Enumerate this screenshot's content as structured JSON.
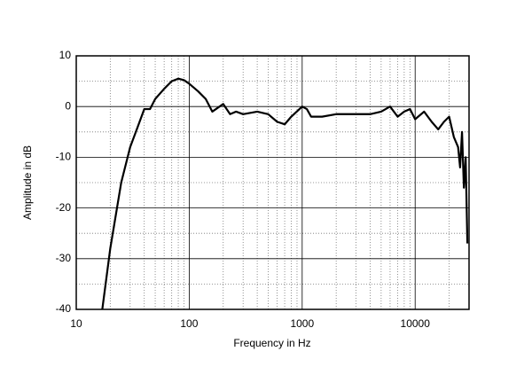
{
  "chart_data": {
    "type": "line",
    "xlabel": "Frequency in Hz",
    "ylabel": "Amplitude in dB",
    "xscale": "log",
    "grid": true,
    "xlim": [
      10,
      30000
    ],
    "xticks": [
      10,
      100,
      1000,
      10000
    ],
    "ylim": [
      -40,
      10
    ],
    "yticks": [
      10,
      0,
      -10,
      -20,
      -30,
      -40
    ],
    "series": [
      {
        "name": "Amplitude",
        "color": "#000000",
        "x": [
          17,
          20,
          25,
          30,
          35,
          40,
          45,
          50,
          60,
          70,
          80,
          90,
          100,
          120,
          140,
          160,
          200,
          230,
          260,
          300,
          400,
          500,
          600,
          700,
          800,
          1000,
          1100,
          1200,
          1500,
          2000,
          3000,
          4000,
          5000,
          6000,
          7000,
          8000,
          9000,
          10000,
          12000,
          14000,
          16000,
          18000,
          20000,
          22000,
          24000,
          25000,
          26000,
          27000,
          28000,
          29000
        ],
        "values": [
          -40,
          -28,
          -15,
          -8,
          -4,
          -0.5,
          -0.5,
          1.5,
          3.5,
          5,
          5.5,
          5.2,
          4.5,
          3,
          1.5,
          -1,
          0.5,
          -1.5,
          -1,
          -1.5,
          -1,
          -1.5,
          -3,
          -3.5,
          -2,
          0,
          -0.5,
          -2,
          -2,
          -1.5,
          -1.5,
          -1.5,
          -1,
          0,
          -2,
          -1,
          -0.5,
          -2.5,
          -1,
          -3,
          -4.5,
          -3,
          -2,
          -6,
          -8,
          -12,
          -5,
          -16,
          -10,
          -27
        ]
      }
    ]
  }
}
